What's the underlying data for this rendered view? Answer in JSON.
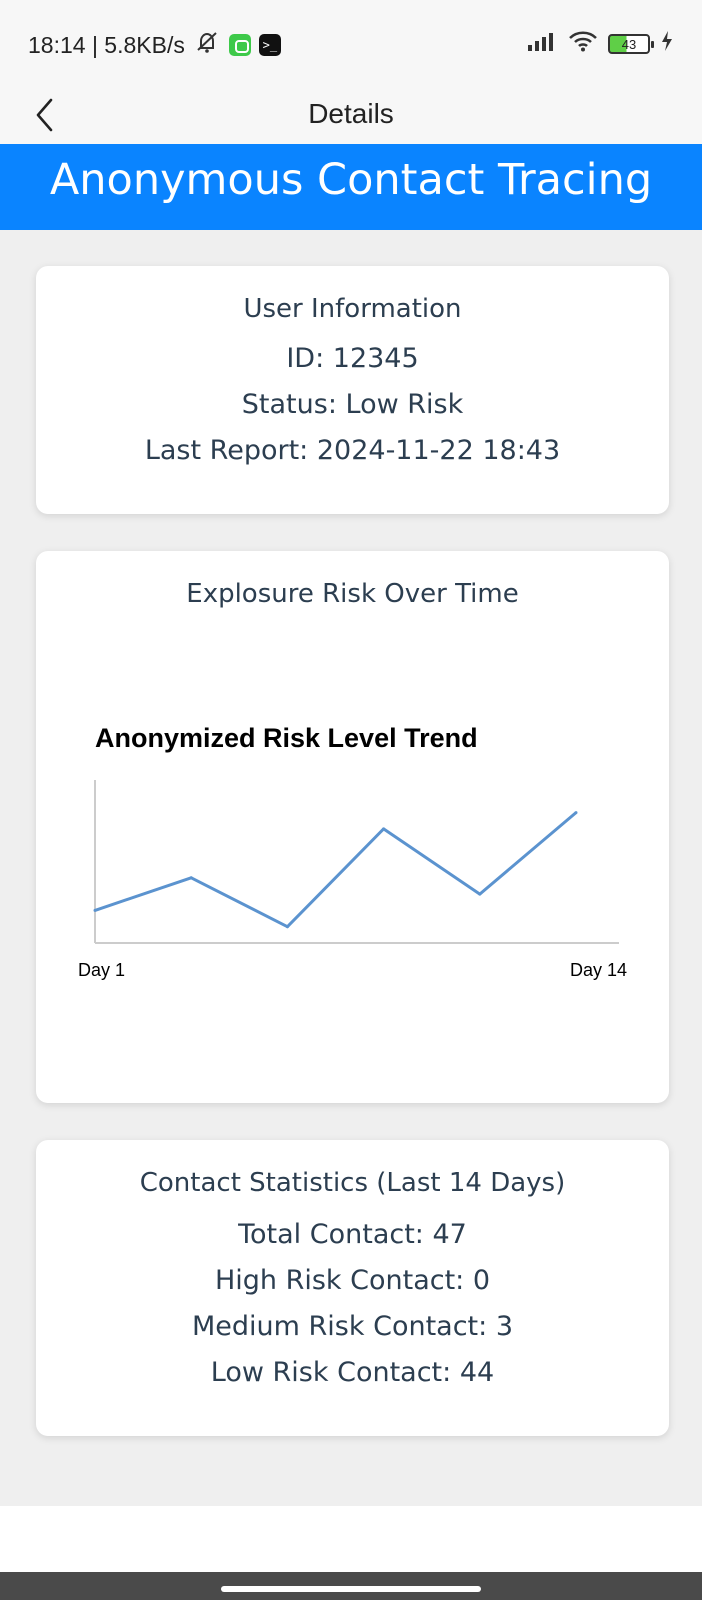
{
  "status_bar": {
    "time_speed": "18:14 | 5.8KB/s",
    "battery_level": "43",
    "icons": [
      "mute-icon",
      "app-icon",
      "terminal-icon",
      "signal-icon",
      "wifi-icon",
      "battery-icon",
      "charging-icon"
    ]
  },
  "nav": {
    "title": "Details",
    "back_icon": "chevron-left-icon"
  },
  "header": {
    "title": "Anonymous Contact Tracing",
    "color": "#0a84ff"
  },
  "user_info": {
    "heading": "User Information",
    "id": "ID: 12345",
    "status": "Status: Low Risk",
    "last_report": "Last Report: 2024-11-22 18:43"
  },
  "risk_chart": {
    "heading": "Explosure Risk Over Time"
  },
  "chart_data": {
    "type": "line",
    "title": "Anonymized Risk Level Trend",
    "x_tick_labels": [
      "Day 1",
      "Day 14"
    ],
    "x": [
      1,
      2,
      3,
      4,
      5,
      6
    ],
    "values": [
      2,
      4,
      1,
      7,
      3,
      8
    ],
    "ylim": [
      0,
      10
    ],
    "grid": false,
    "line_color": "#5b93cf"
  },
  "stats": {
    "heading": "Contact Statistics (Last 14 Days)",
    "total": "Total Contact: 47",
    "high": "High Risk Contact: 0",
    "medium": "Medium Risk Contact: 3",
    "low": "Low Risk Contact: 44"
  }
}
